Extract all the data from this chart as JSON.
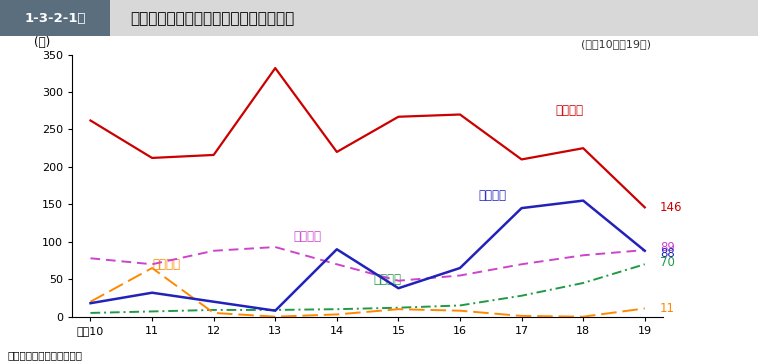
{
  "years": [
    10,
    11,
    12,
    13,
    14,
    15,
    16,
    17,
    18,
    19
  ],
  "hojin_zeiho": [
    262,
    212,
    216,
    332,
    220,
    267,
    270,
    210,
    225,
    146
  ],
  "shotoku_zeiho": [
    78,
    70,
    88,
    93,
    70,
    48,
    55,
    70,
    82,
    89
  ],
  "chihozeiho": [
    18,
    32,
    20,
    8,
    90,
    38,
    65,
    145,
    155,
    88
  ],
  "shohizeiho": [
    5,
    7,
    9,
    9,
    10,
    12,
    15,
    28,
    45,
    70
  ],
  "sozoku_zeiho": [
    20,
    65,
    5,
    0,
    3,
    10,
    8,
    1,
    0,
    11
  ],
  "c_hojin": "#cc0000",
  "c_shotoku": "#cc44cc",
  "c_chiho": "#2222bb",
  "c_shohi": "#229944",
  "c_sozoku": "#ff8800",
  "title_box": "1-3-2-1図",
  "title_main": "各税法違反の検察庁新規受理人員の推移",
  "subtitle": "(平成10年～19年)",
  "ylabel": "(人)",
  "note": "注　検察統計年報による。",
  "label_hojin": "法人税法",
  "label_shotoku": "所得税法",
  "label_chiho": "地方税法",
  "label_shohi": "消費税法",
  "label_sozoku": "相続税法",
  "xticklabels": [
    "平成10",
    "11",
    "12",
    "13",
    "14",
    "15",
    "16",
    "17",
    "18",
    "19"
  ],
  "yticks": [
    0,
    50,
    100,
    150,
    200,
    250,
    300,
    350
  ]
}
